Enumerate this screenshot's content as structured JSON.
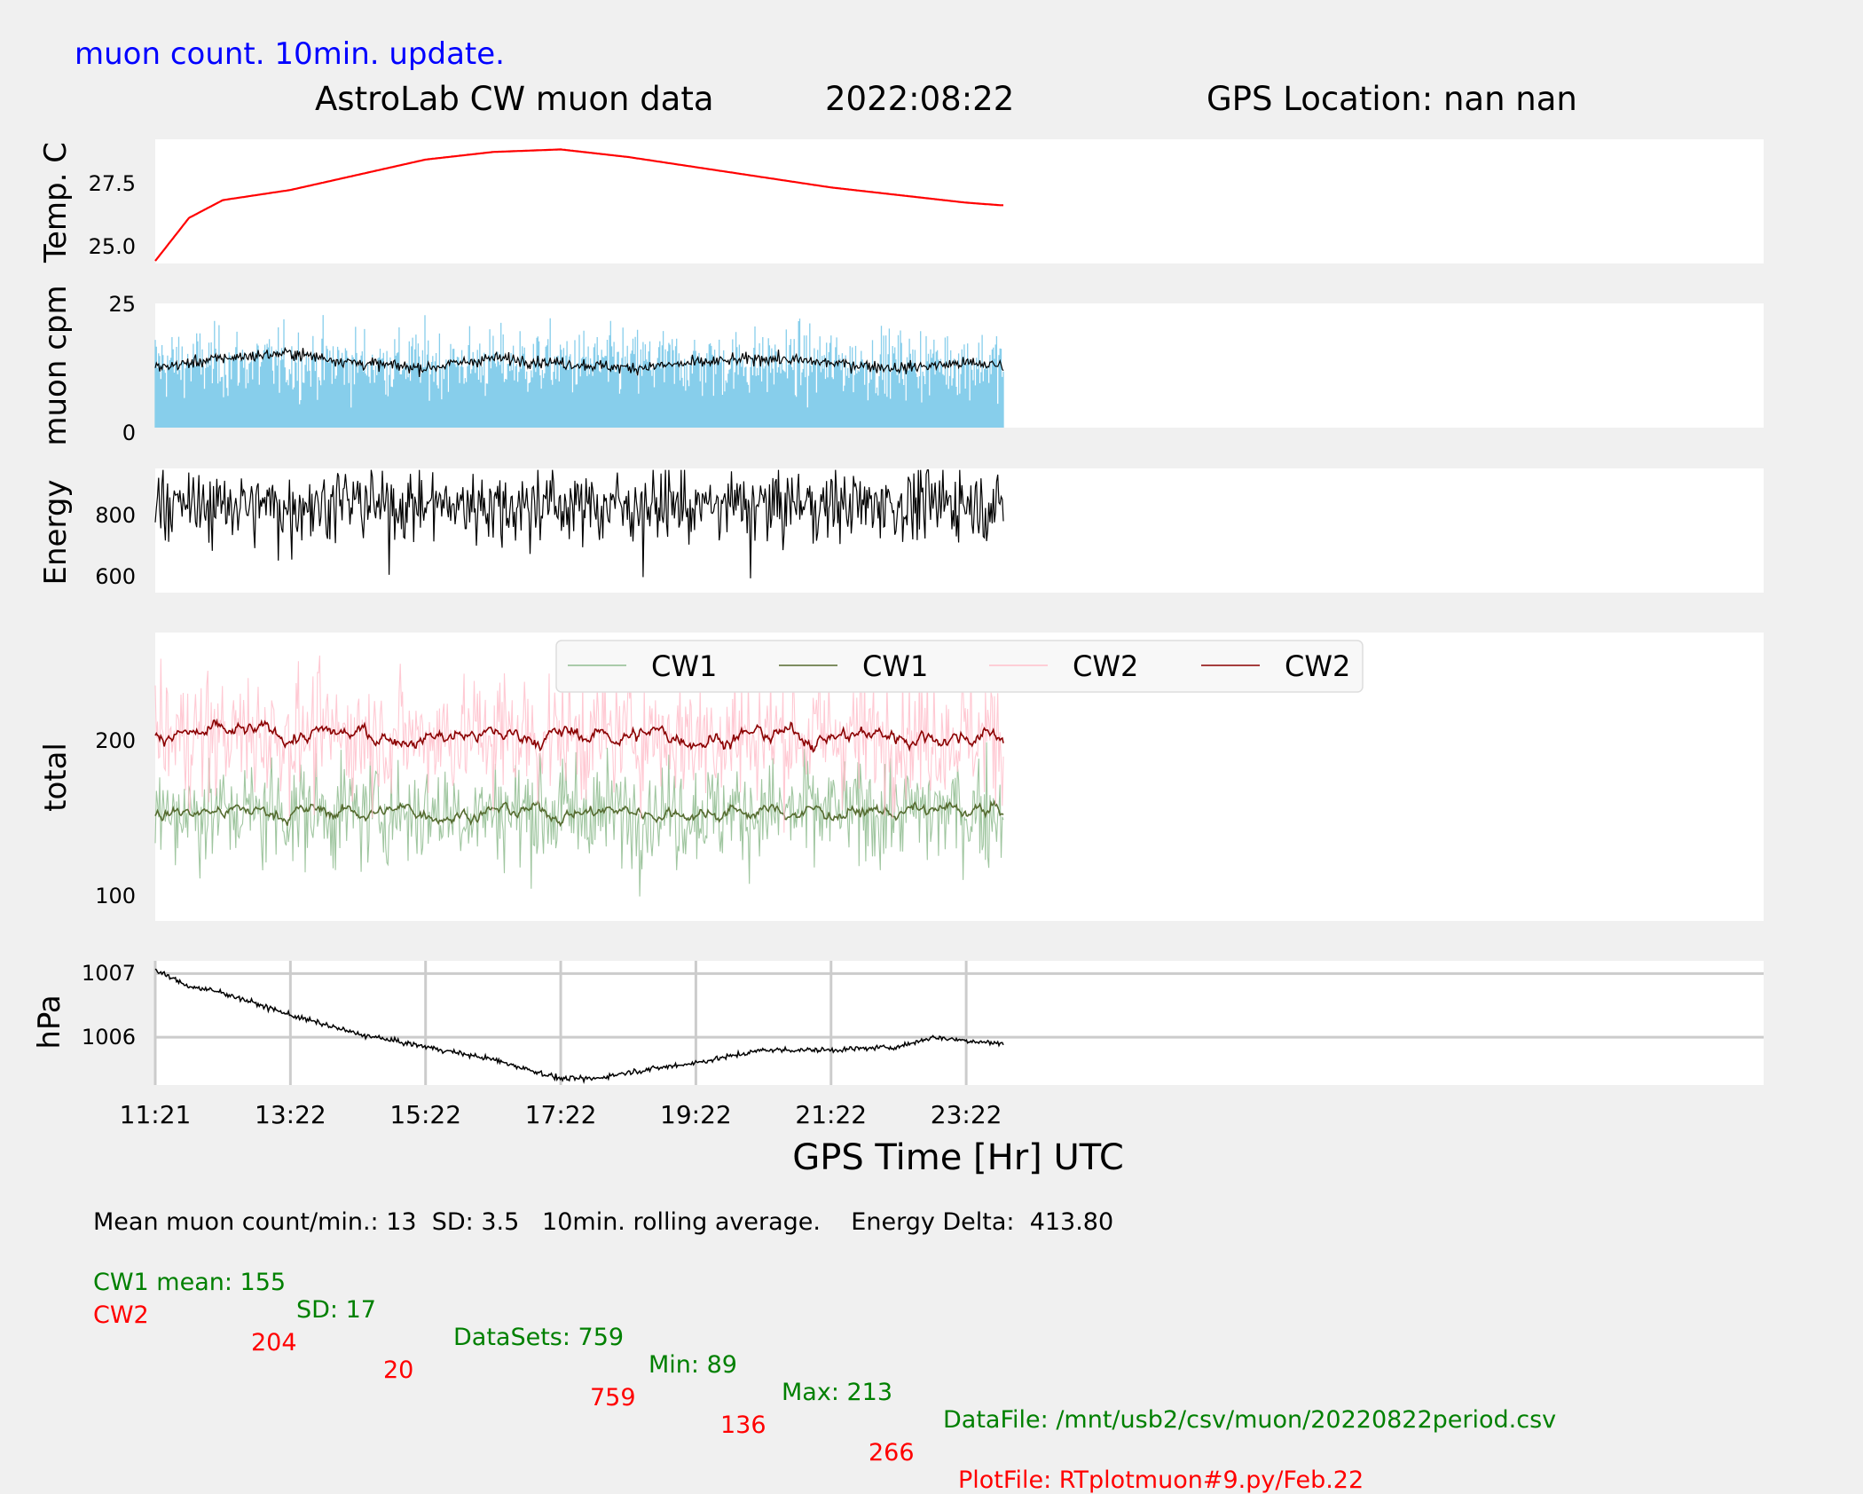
{
  "header": {
    "note": "muon count.  10min. update.",
    "title": "AstroLab CW muon data",
    "date": "2022:08:22",
    "gps_location": "GPS Location: nan   nan",
    "note_color": "#0000ff"
  },
  "chart_data": [
    {
      "type": "line",
      "ylabel": "Temp. C",
      "yticks": [
        "27.5",
        "25.0"
      ],
      "ylim": [
        24.8,
        29.7
      ],
      "series": [
        {
          "color": "#ff0000",
          "x": [
            0,
            0.5,
            1,
            1.5,
            2,
            3,
            4,
            5,
            6,
            7,
            8,
            9,
            10,
            11,
            12,
            12.5
          ],
          "values": [
            24.9,
            26.6,
            27.3,
            27.5,
            27.7,
            28.3,
            28.9,
            29.2,
            29.3,
            29.0,
            28.6,
            28.2,
            27.8,
            27.5,
            27.2,
            27.1
          ]
        }
      ]
    },
    {
      "type": "bar+line",
      "ylabel": "muon cpm",
      "yticks": [
        "25",
        "0"
      ],
      "ylim": [
        0,
        25
      ],
      "bar_color": "#87ceeb",
      "bar_mean": 13,
      "bar_sd": 3.5,
      "bar_count": 759,
      "series": [
        {
          "color": "#000000",
          "x": [
            0,
            1,
            2,
            3,
            4,
            5,
            6,
            7,
            8,
            9,
            10,
            11,
            12,
            12.5
          ],
          "values": [
            12,
            14,
            15,
            13,
            12,
            14,
            13,
            12,
            13,
            14,
            13,
            12,
            13,
            12.5
          ]
        }
      ]
    },
    {
      "type": "line",
      "ylabel": "Energy",
      "yticks": [
        "800",
        "600"
      ],
      "ylim": [
        550,
        960
      ],
      "noise_mean": 840,
      "noise_sd": 55,
      "noise_min": 550,
      "series": [
        {
          "color": "#000000"
        }
      ]
    },
    {
      "type": "line",
      "ylabel": "total",
      "yticks": [
        "200",
        "100"
      ],
      "ylim": [
        85,
        270
      ],
      "legend": [
        "CW1",
        "CW1",
        "CW2",
        "CW2"
      ],
      "legend_colors": [
        "#8fbc8f",
        "#556b2f",
        "#ffc0cb",
        "#8b0000"
      ],
      "legend_position": "top",
      "series": [
        {
          "name": "CW1",
          "color": "#8fbc8f",
          "mean": 155,
          "sd": 17
        },
        {
          "name": "CW1",
          "color": "#556b2f",
          "mean": 155,
          "sd": 6
        },
        {
          "name": "CW2",
          "color": "#ffc0cb",
          "mean": 204,
          "sd": 20
        },
        {
          "name": "CW2",
          "color": "#8b0000",
          "mean": 204,
          "sd": 7
        }
      ]
    },
    {
      "type": "line",
      "ylabel": "hPa",
      "yticks": [
        "1007",
        "1006"
      ],
      "ylim": [
        1005.25,
        1007.2
      ],
      "grid": true,
      "series": [
        {
          "color": "#000000",
          "x": [
            0,
            0.5,
            1,
            2,
            3,
            4,
            5,
            6,
            6.5,
            7,
            8,
            9,
            10,
            11,
            11.5,
            12,
            12.5
          ],
          "values": [
            1007.05,
            1006.8,
            1006.7,
            1006.35,
            1006.05,
            1005.85,
            1005.65,
            1005.35,
            1005.35,
            1005.45,
            1005.6,
            1005.8,
            1005.8,
            1005.85,
            1006.0,
            1005.95,
            1005.9
          ]
        }
      ]
    }
  ],
  "xaxis": {
    "label": "GPS Time  [Hr] UTC",
    "ticks": [
      "11:21",
      "13:22",
      "15:22",
      "17:22",
      "19:22",
      "21:22",
      "23:22"
    ],
    "tick_hours": [
      0,
      2,
      4,
      6,
      8,
      10,
      12
    ],
    "xlim": [
      0,
      23.8
    ],
    "data_end_hour": 12.55
  },
  "footer": {
    "line1": "Mean muon count/min.: 13  SD: 3.5   10min. rolling average.    Energy Delta:  413.80",
    "cw1": {
      "label": "CW1 mean: 155",
      "sd": "SD: 17",
      "datasets": "DataSets: 759",
      "min": "Min: 89",
      "max": "Max: 213",
      "file": "DataFile: /mnt/usb2/csv/muon/20220822period.csv",
      "color": "#008000"
    },
    "cw2": {
      "label": "CW2",
      "mean": "204",
      "sd": "20",
      "datasets": "759",
      "min": "136",
      "max": "266",
      "file": "PlotFile: RTplotmuon#9.py/Feb.22",
      "color": "#ff0000"
    }
  }
}
